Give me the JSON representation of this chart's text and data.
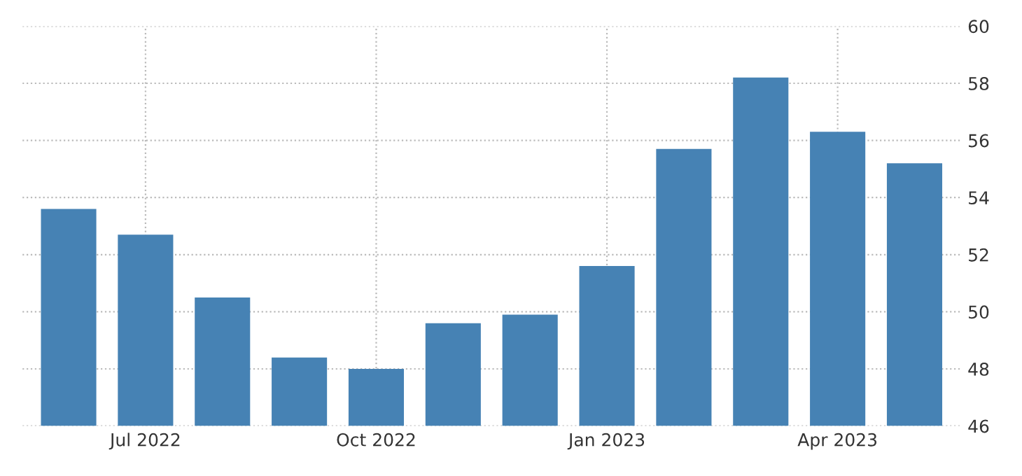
{
  "chart_data": {
    "type": "bar",
    "categories": [
      null,
      "Jul 2022",
      null,
      null,
      "Oct 2022",
      null,
      null,
      "Jan 2023",
      null,
      null,
      "Apr 2023",
      null
    ],
    "values": [
      53.6,
      52.7,
      50.5,
      48.4,
      48.0,
      49.6,
      49.9,
      51.6,
      55.7,
      58.2,
      56.3,
      55.2
    ],
    "color": "#4682b4",
    "ylim": [
      46,
      60
    ],
    "yticks": [
      46,
      48,
      50,
      52,
      54,
      56,
      58,
      60
    ],
    "grid": true
  }
}
